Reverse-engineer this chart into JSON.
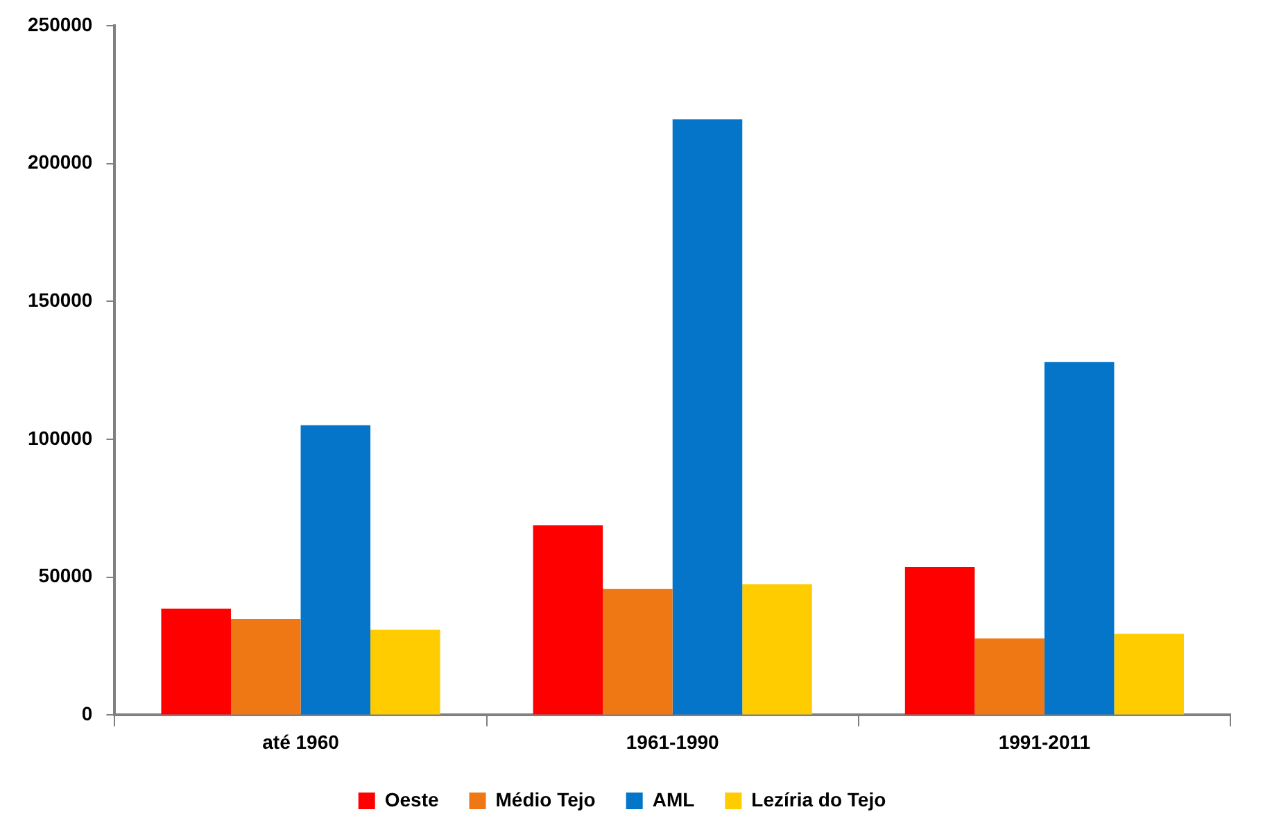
{
  "chart_data": {
    "type": "bar",
    "categories": [
      "até 1960",
      "1961-1990",
      "1991-2011"
    ],
    "series": [
      {
        "name": "Oeste",
        "color": "#ff0000",
        "values": [
          38600,
          68800,
          53700
        ]
      },
      {
        "name": "Médio Tejo",
        "color": "#f07814",
        "values": [
          34800,
          45700,
          27800
        ]
      },
      {
        "name": "AML",
        "color": "#0475c8",
        "values": [
          105100,
          216000,
          128000
        ]
      },
      {
        "name": "Lezíria do Tejo",
        "color": "#ffcc00",
        "values": [
          30900,
          47400,
          29500
        ]
      }
    ],
    "ylim": [
      0,
      250000
    ],
    "yticks": [
      0,
      50000,
      100000,
      150000,
      200000,
      250000
    ],
    "grid": false,
    "legend": "bottom"
  }
}
